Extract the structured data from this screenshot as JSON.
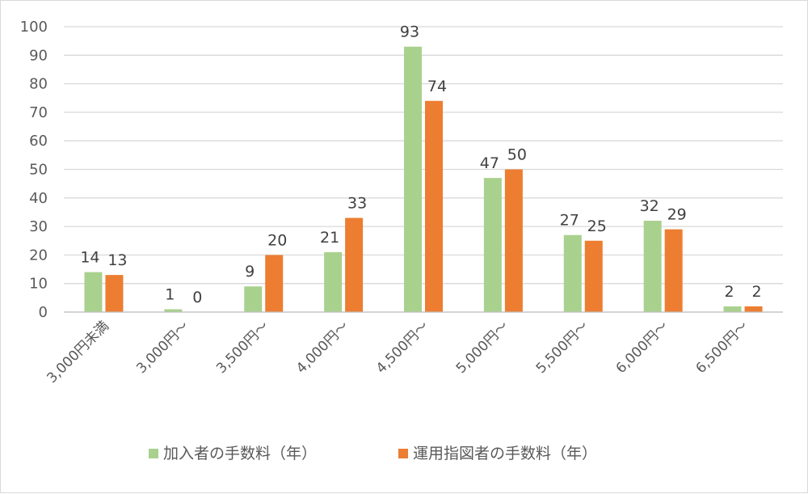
{
  "chart_data": {
    "type": "bar",
    "categories": [
      "3,000円未満",
      "3,000円～",
      "3,500円～",
      "4,000円～",
      "4,500円～",
      "5,000円～",
      "5,500円～",
      "6,000円～",
      "6,500円～"
    ],
    "series": [
      {
        "name": "加入者の手数料（年）",
        "values": [
          14,
          1,
          9,
          21,
          93,
          47,
          27,
          32,
          2
        ],
        "color": "#a9d18e"
      },
      {
        "name": "運用指図者の手数料（年）",
        "values": [
          13,
          0,
          20,
          33,
          74,
          50,
          25,
          29,
          2
        ],
        "color": "#ed7d31"
      }
    ],
    "yticks": [
      "0",
      "10",
      "20",
      "30",
      "40",
      "50",
      "60",
      "70",
      "80",
      "90",
      "100"
    ],
    "ylim": [
      0,
      100
    ],
    "grid": true,
    "legend_position": "bottom"
  }
}
